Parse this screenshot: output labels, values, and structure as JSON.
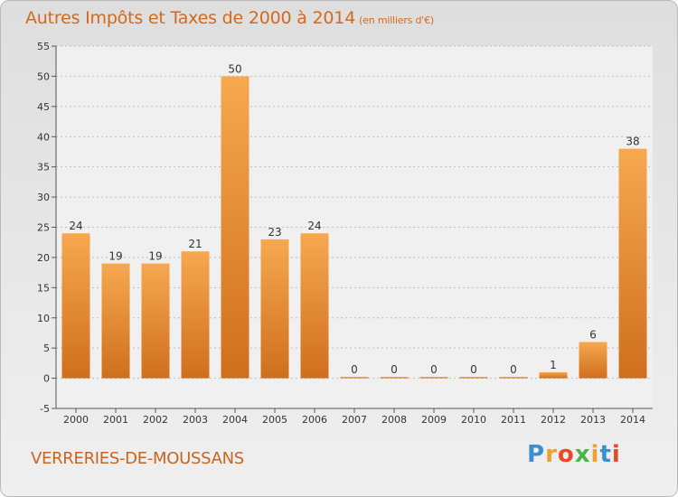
{
  "title": "Autres Impôts et Taxes de 2000 à 2014",
  "unit": "(en milliers d'€)",
  "commune": "VERRERIES-DE-MOUSSANS",
  "logo": "Proxiti",
  "colors": {
    "bar_light": "#f6a850",
    "bar_dark": "#cf6f1d",
    "title": "#d2691e"
  },
  "chart_data": {
    "type": "bar",
    "categories": [
      "2000",
      "2001",
      "2002",
      "2003",
      "2004",
      "2005",
      "2006",
      "2007",
      "2008",
      "2009",
      "2010",
      "2011",
      "2012",
      "2013",
      "2014"
    ],
    "values": [
      24,
      19,
      19,
      21,
      50,
      23,
      24,
      0,
      0,
      0,
      0,
      0,
      1,
      6,
      38
    ],
    "title": "Autres Impôts et Taxes de 2000 à 2014",
    "subtitle": "(en milliers d'€)",
    "xlabel": "",
    "ylabel": "",
    "ylim": [
      -5,
      55
    ],
    "yticks": [
      -5,
      0,
      5,
      10,
      15,
      20,
      25,
      30,
      35,
      40,
      45,
      50,
      55
    ],
    "grid": "horizontal dashed",
    "data_labels": true
  }
}
